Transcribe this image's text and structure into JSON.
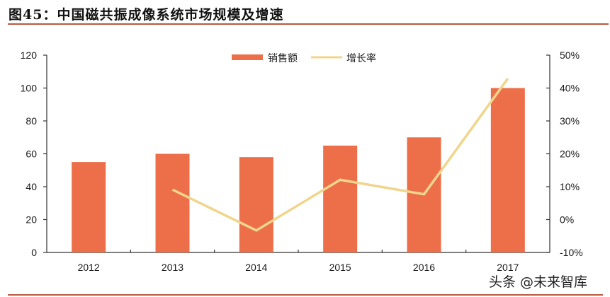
{
  "header": {
    "title": "图45：中国磁共振成像系统市场规模及增速"
  },
  "watermark": "头条 @未来智库",
  "colors": {
    "bar": "#EC6F4A",
    "line": "#F0D58C",
    "axis": "#333333",
    "rule": "#B85A3E"
  },
  "chart_data": {
    "type": "bar+line",
    "title": "中国磁共振成像系统市场规模及增速",
    "categories": [
      "2012",
      "2013",
      "2014",
      "2015",
      "2016",
      "2017"
    ],
    "series": [
      {
        "name": "销售额",
        "type": "bar",
        "axis": "left",
        "values": [
          55,
          60,
          58,
          65,
          70,
          100
        ]
      },
      {
        "name": "增长率",
        "type": "line",
        "axis": "right",
        "unit": "%",
        "values": [
          null,
          9.1,
          -3.3,
          12.1,
          7.7,
          42.9
        ]
      }
    ],
    "left_axis": {
      "ylim": [
        0,
        120
      ],
      "ticks": [
        0,
        20,
        40,
        60,
        80,
        100,
        120
      ]
    },
    "right_axis": {
      "ylim": [
        -10,
        50
      ],
      "ticks": [
        "-10%",
        "0%",
        "10%",
        "20%",
        "30%",
        "40%",
        "50%"
      ]
    },
    "xlabel": "",
    "ylabel": "",
    "legend": {
      "position": "top-center",
      "entries": [
        "销售额",
        "增长率"
      ]
    },
    "grid": false
  }
}
